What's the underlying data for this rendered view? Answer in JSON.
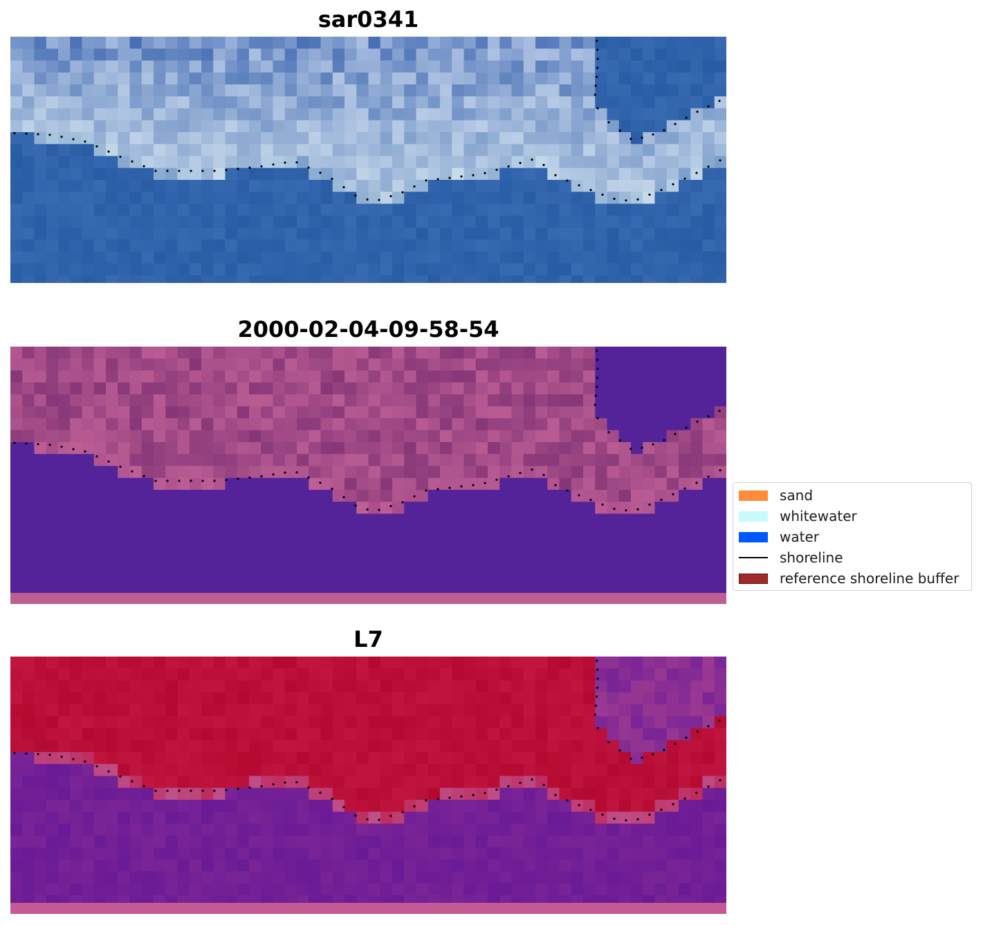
{
  "panels": [
    {
      "title": "sar0341",
      "kind": "rgb"
    },
    {
      "title": "2000-02-04-09-58-54",
      "kind": "classified"
    },
    {
      "title": "L7",
      "kind": "index"
    }
  ],
  "legend": {
    "items": [
      {
        "label": "sand",
        "color": "#ff8c3a"
      },
      {
        "label": "whitewater",
        "color": "#c8fcfc"
      },
      {
        "label": "water",
        "color": "#0057ff"
      },
      {
        "label": "shoreline",
        "color": "#000000"
      },
      {
        "label": "reference shoreline buffer",
        "color": "#9e2a2b"
      }
    ]
  },
  "colors": {
    "water_class": "#54239a",
    "land_class": "#a94d8c",
    "ndwi_land": "#c0153f",
    "ndwi_water": "#7a2496",
    "shoreline_dots": "#000000"
  }
}
